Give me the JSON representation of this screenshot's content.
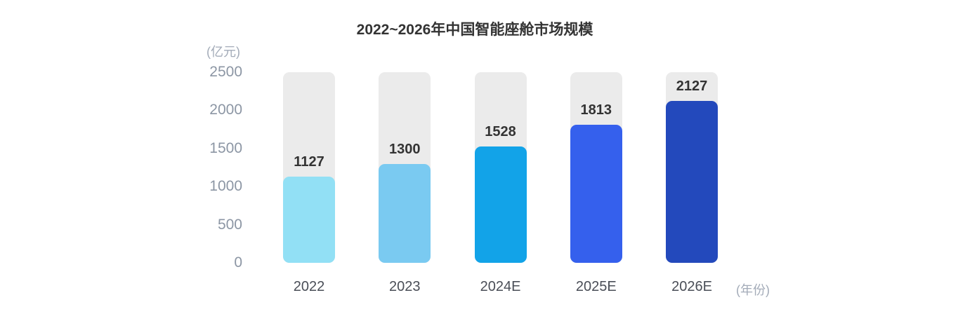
{
  "chart_data": {
    "type": "bar",
    "title": "2022~2026年中国智能座舱市场规模",
    "categories": [
      "2022",
      "2023",
      "2024E",
      "2025E",
      "2026E"
    ],
    "values": [
      1127,
      1300,
      1528,
      1813,
      2127
    ],
    "y_unit_label": "(亿元)",
    "x_unit_label": "(年份)",
    "xlabel": "",
    "ylabel": "",
    "ylim": [
      0,
      2500
    ],
    "yticks": [
      2500,
      2000,
      1500,
      1000,
      500,
      0
    ],
    "grid": false,
    "legend": "none",
    "bar_colors": [
      "#92E0F5",
      "#7ACAF1",
      "#12A3E8",
      "#3560ED",
      "#2349BC"
    ],
    "track_color": "#EBEBEB",
    "colors": {
      "title": "#333333",
      "value_label": "#333333",
      "y_tick": "#8C96A4",
      "x_tick": "#4A4E57",
      "unit_label": "#A3ABB8",
      "background": "#FFFFFF"
    }
  }
}
